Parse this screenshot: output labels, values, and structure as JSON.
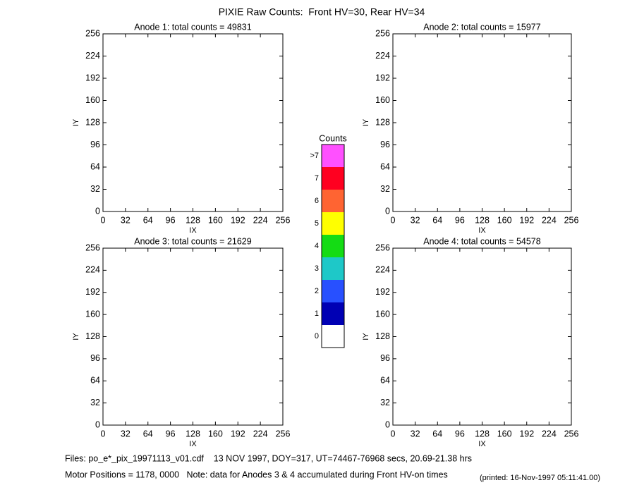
{
  "title": "PIXIE Raw Counts:  Front HV=30, Rear HV=34",
  "chart_data": [
    {
      "type": "heatmap",
      "title": "Anode 1: total counts = 49831",
      "x_label": "IX",
      "y_label": "IY",
      "xlim": [
        0,
        256
      ],
      "ylim": [
        0,
        256
      ],
      "xticks": [
        0,
        32,
        64,
        96,
        128,
        160,
        192,
        224,
        256
      ],
      "yticks": [
        0,
        32,
        64,
        96,
        128,
        160,
        192,
        224,
        256
      ]
    },
    {
      "type": "heatmap",
      "title": "Anode 2: total counts = 15977",
      "x_label": "IX",
      "y_label": "IY",
      "xlim": [
        0,
        256
      ],
      "ylim": [
        0,
        256
      ],
      "xticks": [
        0,
        32,
        64,
        96,
        128,
        160,
        192,
        224,
        256
      ],
      "yticks": [
        0,
        32,
        64,
        96,
        128,
        160,
        192,
        224,
        256
      ]
    },
    {
      "type": "heatmap",
      "title": "Anode 3: total counts = 21629",
      "x_label": "IX",
      "y_label": "IY",
      "xlim": [
        0,
        256
      ],
      "ylim": [
        0,
        256
      ],
      "xticks": [
        0,
        32,
        64,
        96,
        128,
        160,
        192,
        224,
        256
      ],
      "yticks": [
        0,
        32,
        64,
        96,
        128,
        160,
        192,
        224,
        256
      ]
    },
    {
      "type": "heatmap",
      "title": "Anode 4: total counts = 54578",
      "x_label": "IX",
      "y_label": "IY",
      "xlim": [
        0,
        256
      ],
      "ylim": [
        0,
        256
      ],
      "xticks": [
        0,
        32,
        64,
        96,
        128,
        160,
        192,
        224,
        256
      ],
      "yticks": [
        0,
        32,
        64,
        96,
        128,
        160,
        192,
        224,
        256
      ]
    }
  ],
  "colorbar": {
    "title": "Counts",
    "ticks": [
      0,
      1,
      2,
      3,
      4,
      5,
      6,
      7,
      {
        "value": 8,
        "label": ">7"
      }
    ],
    "colors": [
      "#ffffff",
      "#0000b4",
      "#2850ff",
      "#1ec8c8",
      "#14dc14",
      "#ffff00",
      "#ff6432",
      "#ff0020",
      "#ff50ff"
    ]
  },
  "footer": {
    "files": "Files: po_e*_pix_19971113_v01.cdf    13 NOV 1997, DOY=317, UT=74467-76968 secs, 20.69-21.38 hrs",
    "motor": "Motor Positions = 1178, 0000   Note: data for Anodes 3 & 4 accumulated during Front HV-on times",
    "printed": "(printed: 16-Nov-1997 05:11:41.00)"
  }
}
